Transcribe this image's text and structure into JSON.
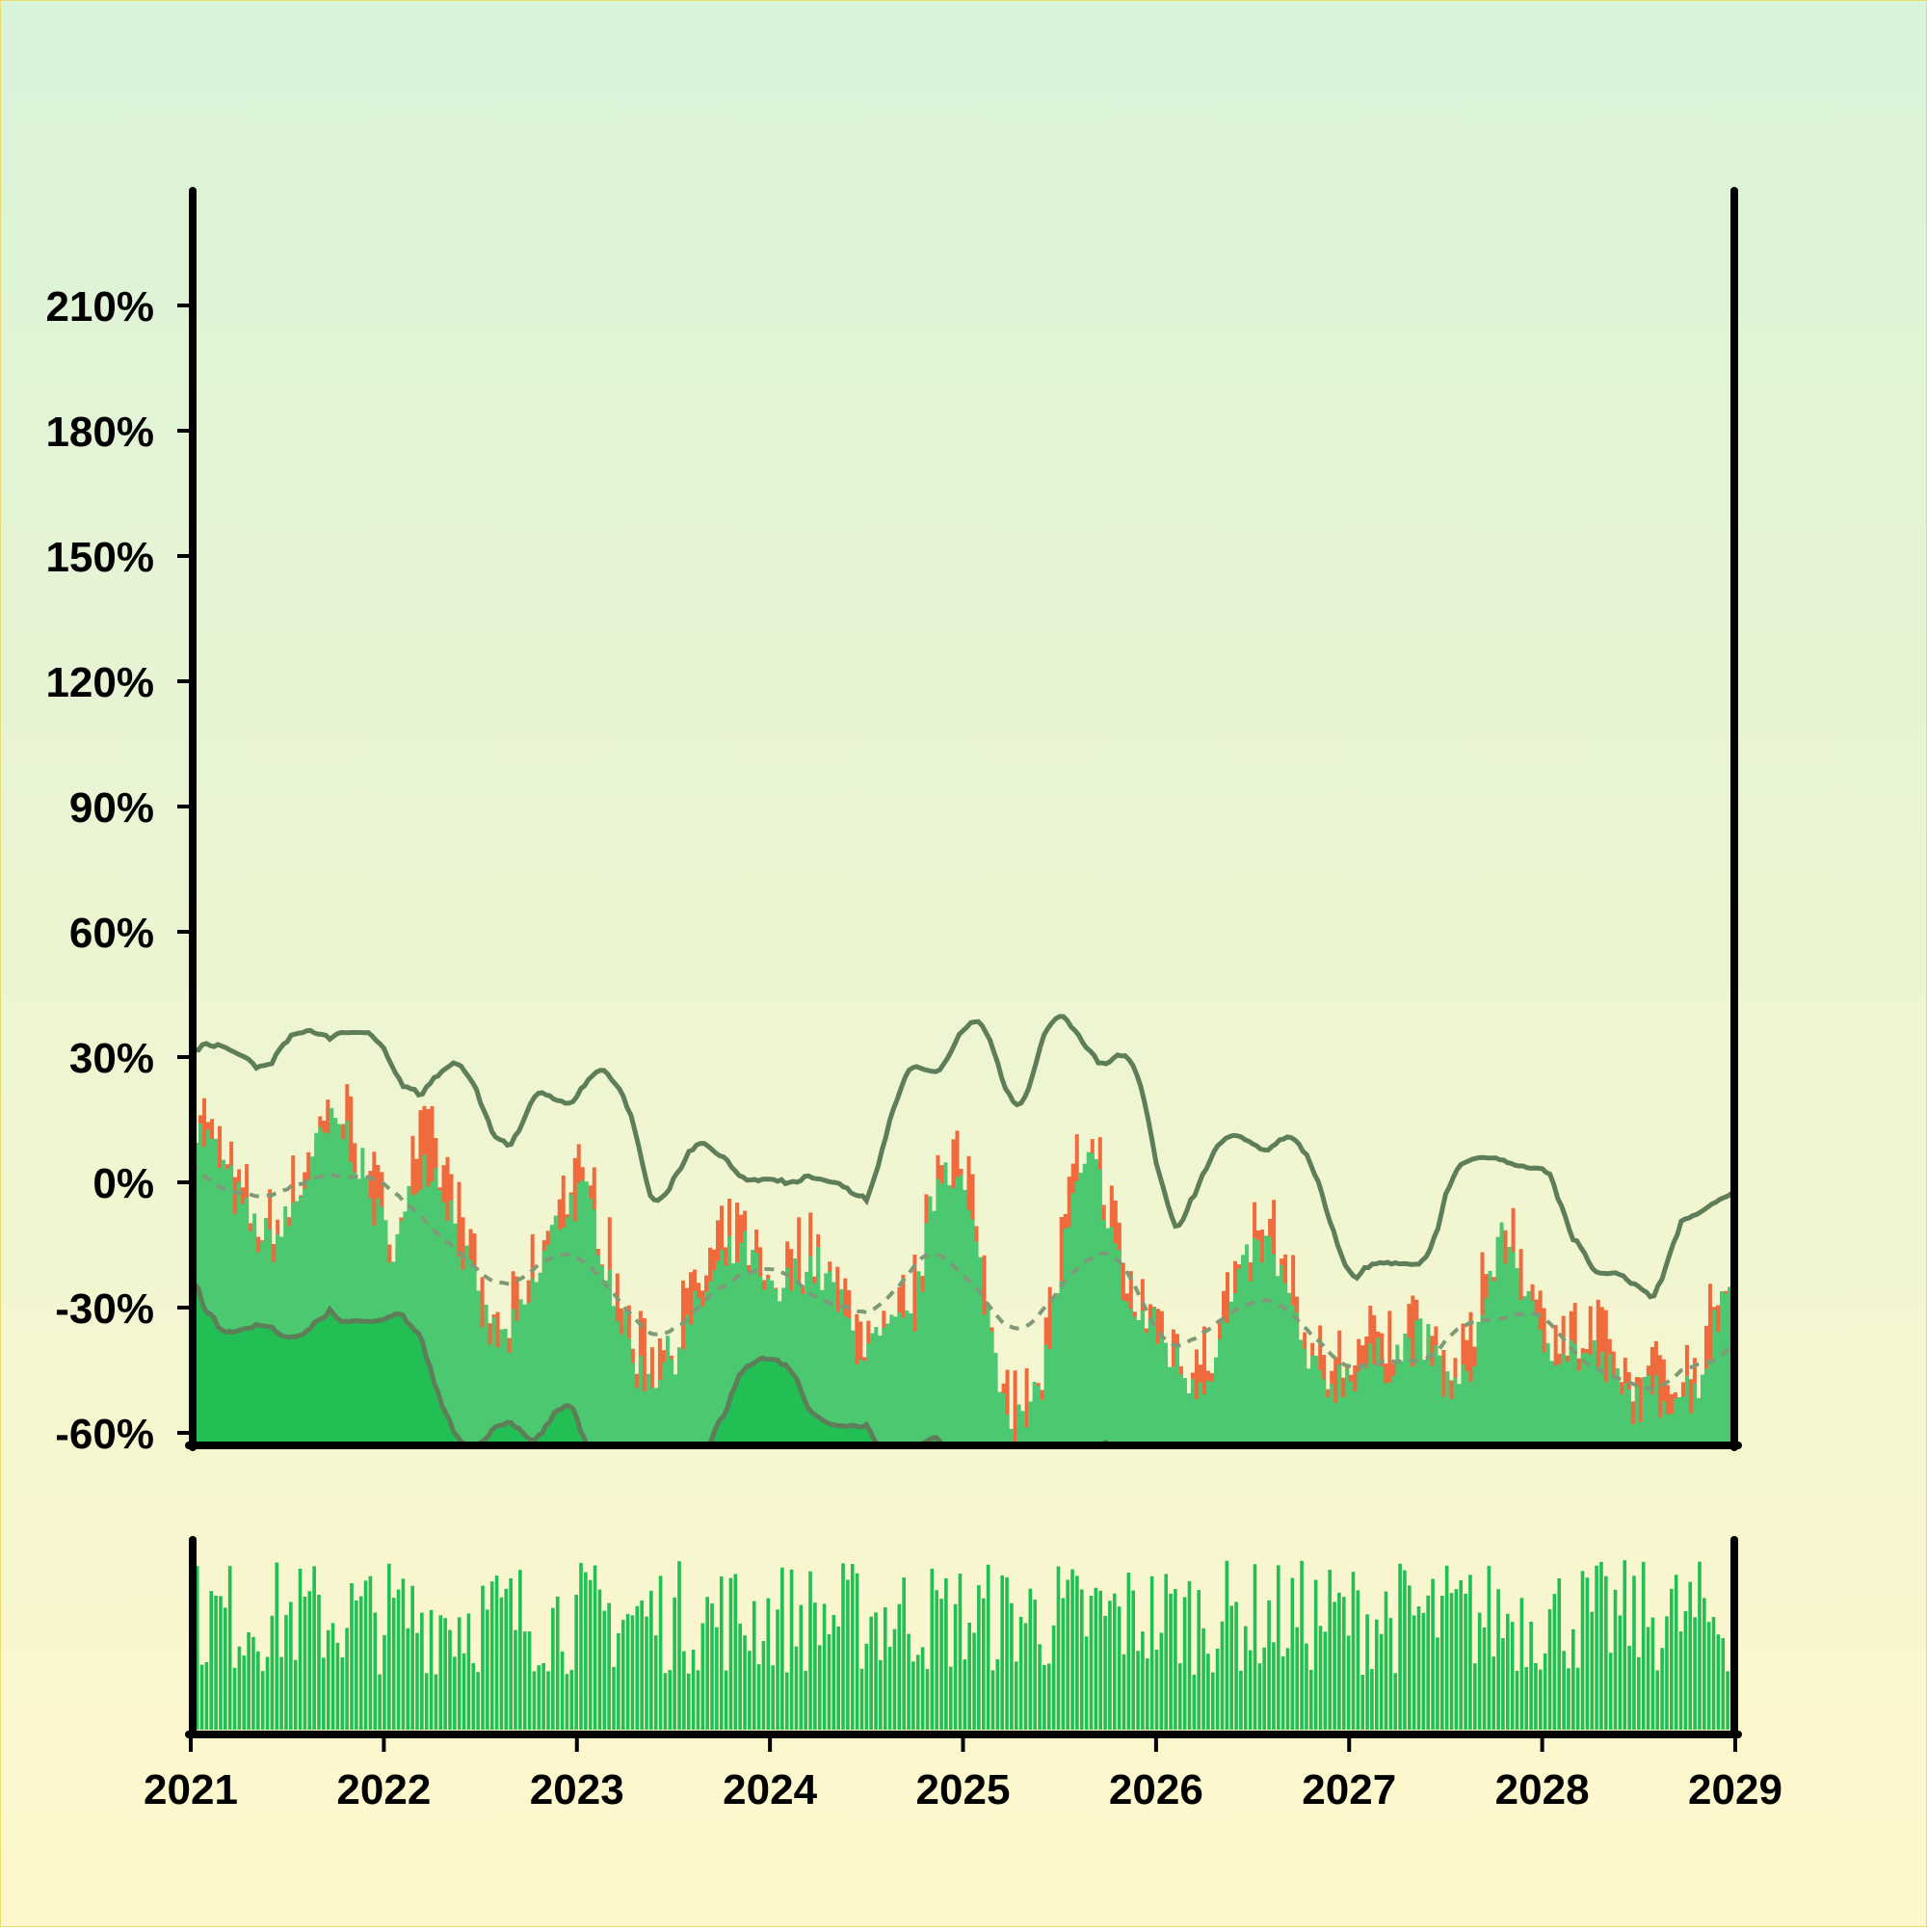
{
  "chart_data": {
    "type": "line",
    "title": "",
    "xlabel": "",
    "ylabel": "",
    "x_ticks": [
      "2021",
      "2022",
      "2023",
      "2024",
      "2025",
      "2026",
      "2027",
      "2028",
      "2029"
    ],
    "y_ticks": [
      "-60%",
      "-30%",
      "0%",
      "30%",
      "60%",
      "90%",
      "120%",
      "150%",
      "180%",
      "210%"
    ],
    "xlim": [
      2021,
      2029
    ],
    "ylim": [
      -60,
      210
    ],
    "grid": false,
    "legend": "none",
    "keypoints": [
      [
        2021.0,
        12
      ],
      [
        2021.4,
        -14
      ],
      [
        2021.75,
        13
      ],
      [
        2022.05,
        -14
      ],
      [
        2022.2,
        5
      ],
      [
        2022.6,
        -38
      ],
      [
        2023.0,
        -4
      ],
      [
        2023.35,
        -46
      ],
      [
        2023.85,
        -17
      ],
      [
        2024.0,
        -28
      ],
      [
        2024.2,
        -20
      ],
      [
        2024.5,
        -40
      ],
      [
        2024.7,
        -35
      ],
      [
        2024.9,
        5
      ],
      [
        2025.3,
        -58
      ],
      [
        2025.65,
        3
      ],
      [
        2025.9,
        -33
      ],
      [
        2026.2,
        -47
      ],
      [
        2026.55,
        -16
      ],
      [
        2026.85,
        -48
      ],
      [
        2027.15,
        -43
      ],
      [
        2027.35,
        -38
      ],
      [
        2027.55,
        -50
      ],
      [
        2027.8,
        -15
      ],
      [
        2028.0,
        -38
      ],
      [
        2028.25,
        -42
      ],
      [
        2028.45,
        -52
      ],
      [
        2028.75,
        -50
      ],
      [
        2029.0,
        -22
      ]
    ],
    "series": [
      {
        "name": "",
        "kind": "price-area",
        "color": "#ef6a3c"
      },
      {
        "name": "",
        "kind": "close-area",
        "color": "#4cc870"
      },
      {
        "name": "",
        "kind": "band-upper",
        "color": "#5e7e5a"
      },
      {
        "name": "",
        "kind": "band-middle",
        "color": "#7f9a78",
        "dashed": true
      },
      {
        "name": "",
        "kind": "band-lower",
        "color": "#5e7e5a"
      },
      {
        "name": "",
        "kind": "lower-fill",
        "color": "#22bf55"
      },
      {
        "name": "",
        "kind": "volume",
        "color": "#22bf55"
      }
    ],
    "colors": {
      "background_top": "#d9f3d8",
      "background_bottom": "#fff7cc",
      "axis": "#000000"
    }
  }
}
